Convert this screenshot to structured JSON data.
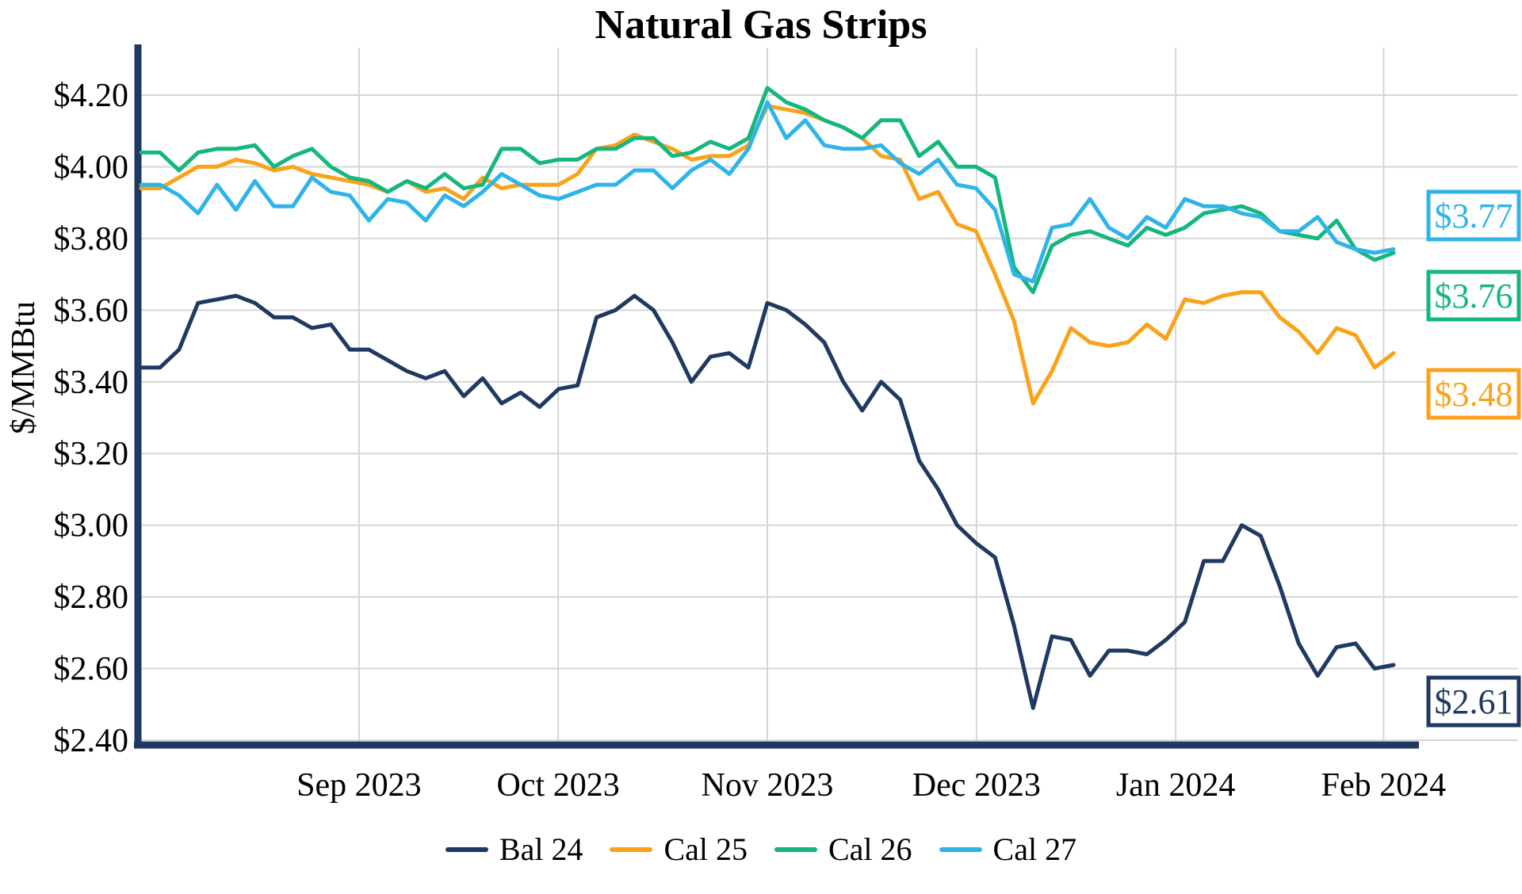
{
  "chart_data": {
    "type": "line",
    "title": "Natural Gas Strips",
    "ylabel": "$/MMBtu",
    "xlabel": "",
    "x_range": "Aug 2023 through early Feb 2024, daily settlement prices",
    "ylim": [
      2.4,
      4.3
    ],
    "grid": true,
    "legend_position": "bottom",
    "y_tick_values": [
      4.2,
      4.0,
      3.8,
      3.6,
      3.4,
      3.2,
      3.0,
      2.8,
      2.6,
      2.4
    ],
    "y_tick_labels": [
      "$4.20",
      "$4.00",
      "$3.80",
      "$3.60",
      "$3.40",
      "$3.20",
      "$3.00",
      "$2.80",
      "$2.60",
      "$2.40"
    ],
    "x_tick_labels": [
      "Sep 2023",
      "Oct 2023",
      "Nov 2023",
      "Dec 2023",
      "Jan 2024",
      "Feb 2024"
    ],
    "x_tick_positions": [
      0.174,
      0.333,
      0.5,
      0.667,
      0.826,
      0.992
    ],
    "series": [
      {
        "name": "Bal 24",
        "color": "#1f3960",
        "end_label": "$2.61",
        "values": [
          3.44,
          3.44,
          3.49,
          3.62,
          3.63,
          3.64,
          3.62,
          3.58,
          3.58,
          3.55,
          3.56,
          3.49,
          3.49,
          3.46,
          3.43,
          3.41,
          3.43,
          3.36,
          3.41,
          3.34,
          3.37,
          3.33,
          3.38,
          3.39,
          3.58,
          3.6,
          3.64,
          3.6,
          3.51,
          3.4,
          3.47,
          3.48,
          3.44,
          3.62,
          3.6,
          3.56,
          3.51,
          3.4,
          3.32,
          3.4,
          3.35,
          3.18,
          3.1,
          3.0,
          2.95,
          2.91,
          2.72,
          2.49,
          2.69,
          2.68,
          2.58,
          2.65,
          2.65,
          2.64,
          2.68,
          2.73,
          2.9,
          2.9,
          3.0,
          2.97,
          2.83,
          2.67,
          2.58,
          2.66,
          2.67,
          2.6,
          2.61
        ]
      },
      {
        "name": "Cal 25",
        "color": "#f9a21a",
        "end_label": "$3.48",
        "values": [
          3.94,
          3.94,
          3.97,
          4.0,
          4.0,
          4.02,
          4.01,
          3.99,
          4.0,
          3.98,
          3.97,
          3.96,
          3.95,
          3.93,
          3.96,
          3.93,
          3.94,
          3.91,
          3.97,
          3.94,
          3.95,
          3.95,
          3.95,
          3.98,
          4.05,
          4.06,
          4.09,
          4.07,
          4.05,
          4.02,
          4.03,
          4.03,
          4.06,
          4.17,
          4.16,
          4.15,
          4.13,
          4.11,
          4.08,
          4.03,
          4.02,
          3.91,
          3.93,
          3.84,
          3.82,
          3.7,
          3.57,
          3.34,
          3.43,
          3.55,
          3.51,
          3.5,
          3.51,
          3.56,
          3.52,
          3.63,
          3.62,
          3.64,
          3.65,
          3.65,
          3.58,
          3.54,
          3.48,
          3.55,
          3.53,
          3.44,
          3.48
        ]
      },
      {
        "name": "Cal 26",
        "color": "#16b67f",
        "end_label": "$3.76",
        "values": [
          4.04,
          4.04,
          3.99,
          4.04,
          4.05,
          4.05,
          4.06,
          4.0,
          4.03,
          4.05,
          4.0,
          3.97,
          3.96,
          3.93,
          3.96,
          3.94,
          3.98,
          3.94,
          3.95,
          4.05,
          4.05,
          4.01,
          4.02,
          4.02,
          4.05,
          4.05,
          4.08,
          4.08,
          4.03,
          4.04,
          4.07,
          4.05,
          4.08,
          4.22,
          4.18,
          4.16,
          4.13,
          4.11,
          4.08,
          4.13,
          4.13,
          4.03,
          4.07,
          4.0,
          4.0,
          3.97,
          3.72,
          3.65,
          3.78,
          3.81,
          3.82,
          3.8,
          3.78,
          3.83,
          3.81,
          3.83,
          3.87,
          3.88,
          3.89,
          3.87,
          3.82,
          3.81,
          3.8,
          3.85,
          3.77,
          3.74,
          3.76
        ]
      },
      {
        "name": "Cal 27",
        "color": "#2fb4e9",
        "end_label": "$3.77",
        "values": [
          3.95,
          3.95,
          3.92,
          3.87,
          3.95,
          3.88,
          3.96,
          3.89,
          3.89,
          3.97,
          3.93,
          3.92,
          3.85,
          3.91,
          3.9,
          3.85,
          3.92,
          3.89,
          3.93,
          3.98,
          3.95,
          3.92,
          3.91,
          3.93,
          3.95,
          3.95,
          3.99,
          3.99,
          3.94,
          3.99,
          4.02,
          3.98,
          4.05,
          4.18,
          4.08,
          4.13,
          4.06,
          4.05,
          4.05,
          4.06,
          4.01,
          3.98,
          4.02,
          3.95,
          3.94,
          3.88,
          3.7,
          3.68,
          3.83,
          3.84,
          3.91,
          3.83,
          3.8,
          3.86,
          3.83,
          3.91,
          3.89,
          3.89,
          3.87,
          3.86,
          3.82,
          3.82,
          3.86,
          3.79,
          3.77,
          3.76,
          3.77
        ]
      }
    ],
    "end_labels": [
      {
        "text": "$3.77",
        "series": "Cal 27"
      },
      {
        "text": "$3.76",
        "series": "Cal 26"
      },
      {
        "text": "$3.48",
        "series": "Cal 25"
      },
      {
        "text": "$2.61",
        "series": "Bal 24"
      }
    ],
    "legend": [
      {
        "label": "Bal 24"
      },
      {
        "label": "Cal 25"
      },
      {
        "label": "Cal 26"
      },
      {
        "label": "Cal 27"
      }
    ],
    "colors": {
      "bal_24": "#1f3960",
      "cal_25": "#f9a21a",
      "cal_26": "#16b67f",
      "cal_27": "#2fb4e9",
      "gridline": "#d6d6d6",
      "axis": "#1f3960",
      "text": "#000000"
    }
  }
}
